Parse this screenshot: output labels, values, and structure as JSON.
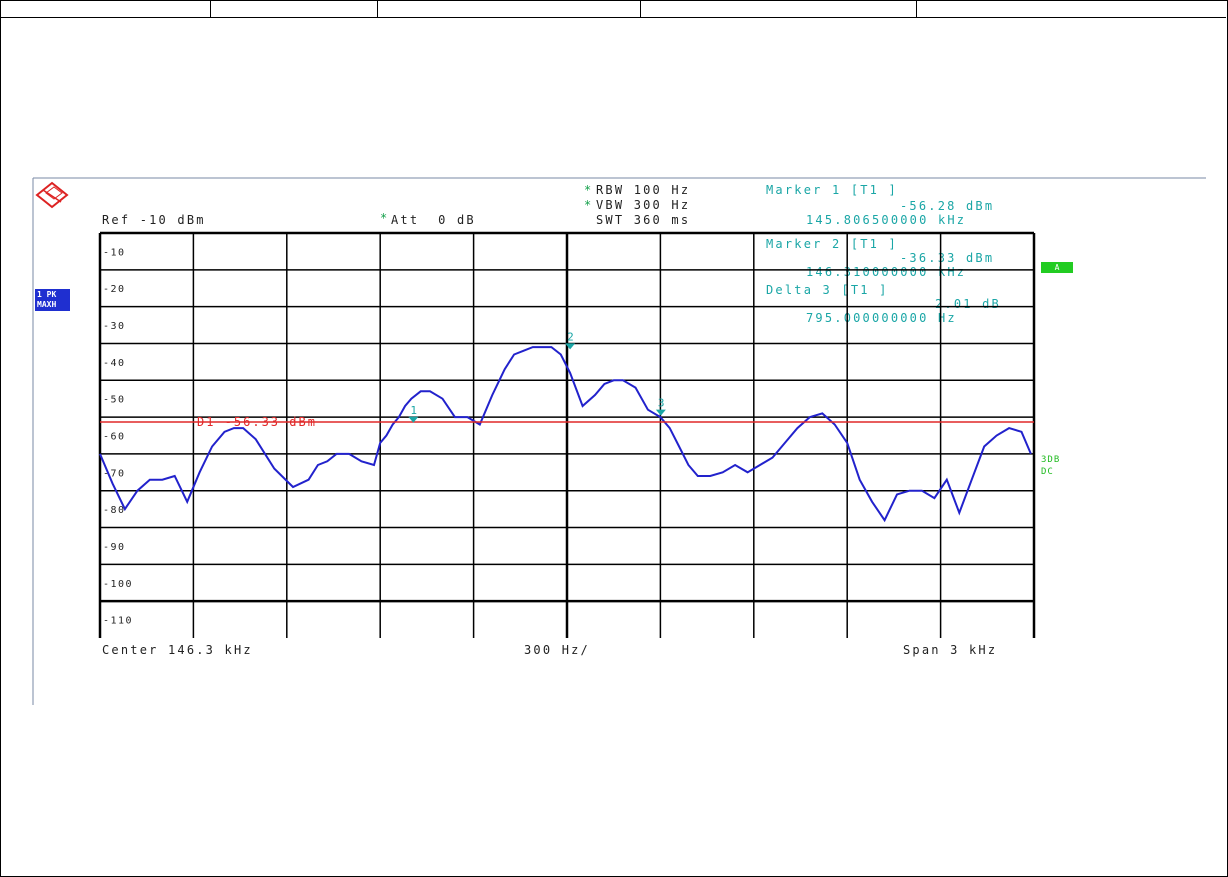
{
  "instrument": {
    "ref_level": "Ref -10 dBm",
    "att": "Att  0 dB",
    "rbw": "RBW 100 Hz",
    "vbw": "VBW 300 Hz",
    "swt": "SWT 360 ms",
    "trace_badge_line1": "1 PK",
    "trace_badge_line2": "MAXH",
    "a_badge": "A",
    "right_label_1": "3DB",
    "right_label_2": "DC",
    "star": "*"
  },
  "markers": {
    "m1_title": "Marker 1 [T1 ]",
    "m1_level": "-56.28 dBm",
    "m1_freq": "145.806500000 kHz",
    "m2_title": "Marker 2 [T1 ]",
    "m2_level": "-36.33 dBm",
    "m2_freq": "146.310000000 kHz",
    "d3_title": "Delta 3 [T1 ]",
    "d3_level": "2.01 dB",
    "d3_freq": "795.000000000 Hz"
  },
  "footer": {
    "center": "Center 146.3 kHz",
    "div": "300 Hz/",
    "span": "Span 3 kHz"
  },
  "colors": {
    "trace": "#2222cc",
    "display_line": "#e02828",
    "marker": "#1aa6a6",
    "grid": "#000000"
  },
  "chart_data": {
    "type": "line",
    "xlabel": "",
    "ylabel": "",
    "x_range_khz": [
      144.8,
      147.8
    ],
    "ylim": [
      -115,
      -5
    ],
    "y_ticks": [
      -10,
      -20,
      -30,
      -40,
      -50,
      -60,
      -70,
      -80,
      -90,
      -100,
      -110
    ],
    "grid": true,
    "display_line": {
      "label": "D1 -56.33 dBm",
      "value": -56.33
    },
    "marker_labels": [
      "1",
      "2",
      "3"
    ],
    "markers": [
      {
        "label": "1",
        "x": 145.8065,
        "y": -56.28
      },
      {
        "label": "2",
        "x": 146.31,
        "y": -36.33
      },
      {
        "label": "3",
        "x": 146.6015,
        "y": -54.32
      }
    ],
    "series": [
      {
        "x": [
          144.8,
          144.84,
          144.88,
          144.92,
          144.96,
          145.0,
          145.04,
          145.08,
          145.12,
          145.16,
          145.2,
          145.23,
          145.26,
          145.3,
          145.36,
          145.42,
          145.47,
          145.5,
          145.53,
          145.56,
          145.6,
          145.64,
          145.68,
          145.7,
          145.72,
          145.74,
          145.76,
          145.78,
          145.8,
          145.83,
          145.86,
          145.9,
          145.94,
          145.98,
          146.02,
          146.06,
          146.1,
          146.13,
          146.16,
          146.19,
          146.22,
          146.25,
          146.28,
          146.31,
          146.35,
          146.39,
          146.42,
          146.45,
          146.48,
          146.52,
          146.56,
          146.6,
          146.63,
          146.66,
          146.69,
          146.72,
          146.76,
          146.8,
          146.84,
          146.88,
          146.92,
          146.96,
          147.0,
          147.04,
          147.08,
          147.12,
          147.16,
          147.2,
          147.24,
          147.28,
          147.32,
          147.36,
          147.4,
          147.44,
          147.48,
          147.52,
          147.56,
          147.6,
          147.64,
          147.68,
          147.72,
          147.76,
          147.79
        ],
        "y": [
          -65,
          -73,
          -80,
          -75,
          -72,
          -72,
          -71,
          -78,
          -70,
          -63,
          -59,
          -58,
          -58,
          -61,
          -69,
          -74,
          -72,
          -68,
          -67,
          -65,
          -65,
          -67,
          -68,
          -62,
          -60,
          -57,
          -55,
          -52,
          -50,
          -48,
          -48,
          -50,
          -55,
          -55,
          -57,
          -49,
          -42,
          -38,
          -37,
          -36,
          -36,
          -36,
          -38,
          -43,
          -52,
          -49,
          -46,
          -45,
          -45,
          -47,
          -53,
          -55,
          -58,
          -63,
          -68,
          -71,
          -71,
          -70,
          -68,
          -70,
          -68,
          -66,
          -62,
          -58,
          -55,
          -54,
          -57,
          -62,
          -72,
          -78,
          -83,
          -76,
          -75,
          -75,
          -77,
          -72,
          -81,
          -72,
          -63,
          -60,
          -58,
          -59,
          -65
        ]
      }
    ]
  }
}
